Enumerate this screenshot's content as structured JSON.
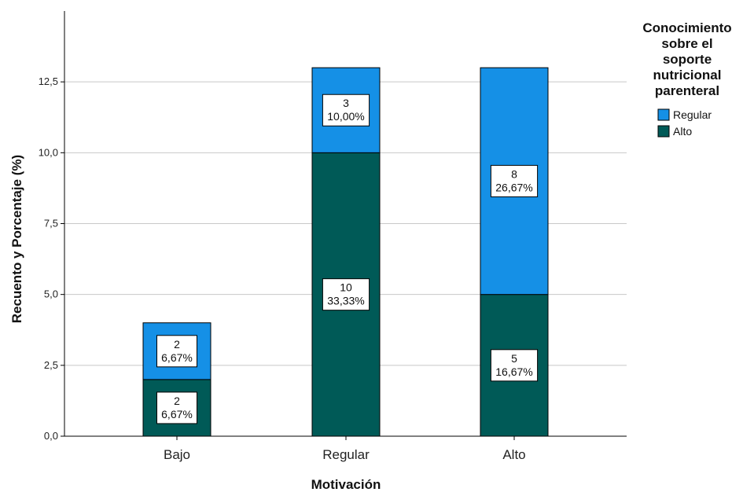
{
  "chart_data": {
    "type": "bar",
    "stacked": true,
    "categories": [
      "Bajo",
      "Regular",
      "Alto"
    ],
    "series": [
      {
        "name": "Alto",
        "color": "#005a57",
        "values": [
          2,
          10,
          5
        ],
        "labels": [
          [
            "2",
            "6,67%"
          ],
          [
            "10",
            "33,33%"
          ],
          [
            "5",
            "16,67%"
          ]
        ]
      },
      {
        "name": "Regular",
        "color": "#1590e6",
        "values": [
          2,
          3,
          8
        ],
        "labels": [
          [
            "2",
            "6,67%"
          ],
          [
            "3",
            "10,00%"
          ],
          [
            "8",
            "26,67%"
          ]
        ]
      }
    ],
    "xlabel": "Motivación",
    "ylabel": "Recuento y Porcentaje (%)",
    "ylim": [
      0,
      15
    ],
    "yticks": [
      "0,0",
      "2,5",
      "5,0",
      "7,5",
      "10,0",
      "12,5"
    ],
    "ytick_values": [
      0,
      2.5,
      5,
      7.5,
      10,
      12.5
    ],
    "grid": true,
    "legend": {
      "title_lines": [
        "Conocimiento",
        "sobre el",
        "soporte",
        "nutricional",
        "parenteral"
      ],
      "entries": [
        "Regular",
        "Alto"
      ],
      "entry_colors": [
        "#1590e6",
        "#005a57"
      ],
      "placement": "right"
    }
  }
}
